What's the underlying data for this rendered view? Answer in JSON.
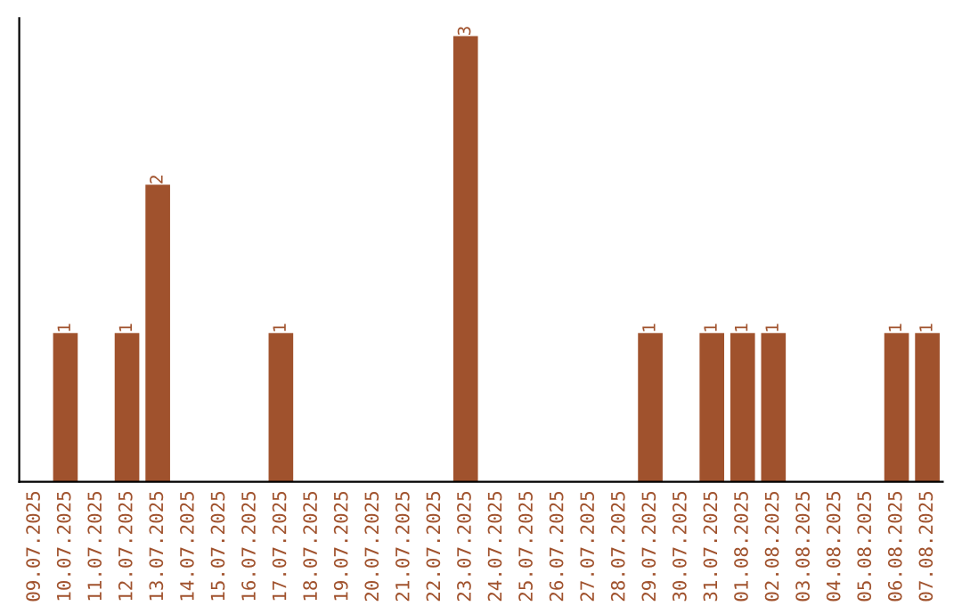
{
  "chart_data": {
    "type": "bar",
    "categories": [
      "09.07.2025",
      "10.07.2025",
      "11.07.2025",
      "12.07.2025",
      "13.07.2025",
      "14.07.2025",
      "15.07.2025",
      "16.07.2025",
      "17.07.2025",
      "18.07.2025",
      "19.07.2025",
      "20.07.2025",
      "21.07.2025",
      "22.07.2025",
      "23.07.2025",
      "24.07.2025",
      "25.07.2025",
      "26.07.2025",
      "27.07.2025",
      "28.07.2025",
      "29.07.2025",
      "30.07.2025",
      "31.07.2025",
      "01.08.2025",
      "02.08.2025",
      "03.08.2025",
      "04.08.2025",
      "05.08.2025",
      "06.08.2025",
      "07.08.2025"
    ],
    "values": [
      0,
      1,
      0,
      1,
      2,
      0,
      0,
      0,
      1,
      0,
      0,
      0,
      0,
      0,
      3,
      0,
      0,
      0,
      0,
      0,
      1,
      0,
      1,
      1,
      1,
      0,
      0,
      0,
      1,
      1
    ],
    "value_labels": [
      null,
      "1",
      null,
      "1",
      "2",
      null,
      null,
      null,
      "1",
      null,
      null,
      null,
      null,
      null,
      "3",
      null,
      null,
      null,
      null,
      null,
      "1",
      null,
      "1",
      "1",
      "1",
      null,
      null,
      null,
      "1",
      "1"
    ],
    "color": "#a0522d",
    "tick_labels": "x",
    "grid": false
  }
}
